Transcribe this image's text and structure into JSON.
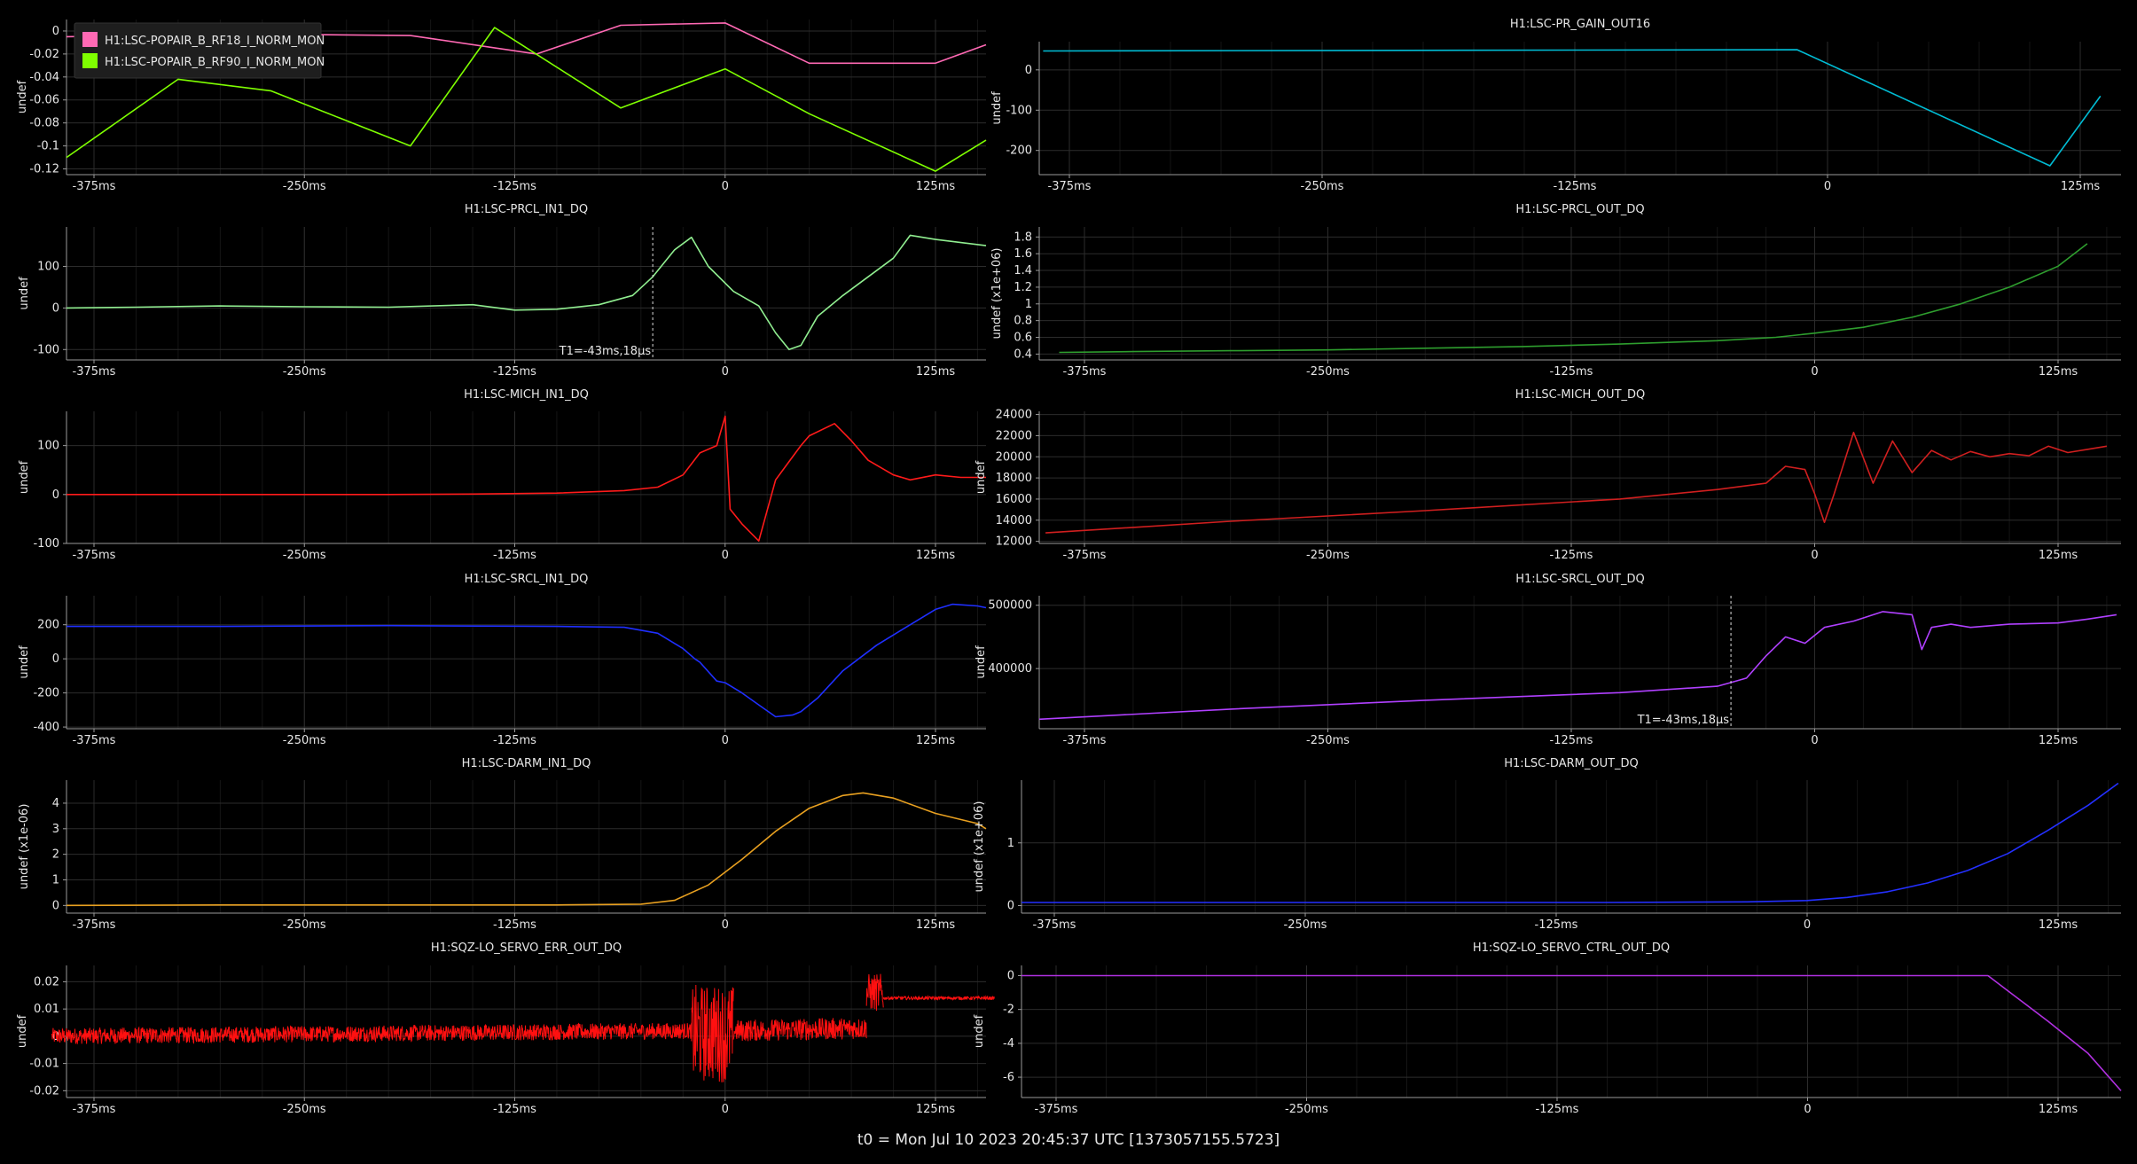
{
  "footer": {
    "t0_label": "t0 = Mon Jul 10 2023 20:45:37 UTC [1373057155.5723]"
  },
  "chart_data": [
    {
      "type": "line",
      "title": "",
      "ylabel": "undef",
      "x_ticks": [
        "-375ms",
        "-250ms",
        "-125ms",
        "0",
        "125ms"
      ],
      "ylim": [
        -0.125,
        0.01
      ],
      "y_ticks": [
        0,
        -0.02,
        -0.04,
        -0.06,
        -0.08,
        -0.1,
        -0.12
      ],
      "y_tick_labels": [
        "0",
        "-0.02",
        "-0.04",
        "-0.06",
        "-0.08",
        "-0.1",
        "-0.12"
      ],
      "legend": "top-left",
      "series": [
        {
          "name": "H1:LSC-POPAIR_B_RF18_I_NORM_MON",
          "color": "#ff69b4",
          "x": [
            -400,
            -325,
            -250,
            -187,
            -112,
            -62,
            0,
            50,
            125,
            165
          ],
          "y": [
            -0.005,
            -0.003,
            -0.003,
            -0.004,
            -0.02,
            0.005,
            0.007,
            -0.028,
            -0.028,
            -0.012
          ]
        },
        {
          "name": "H1:LSC-POPAIR_B_RF90_I_NORM_MON",
          "color": "#7fff00",
          "x": [
            -400,
            -325,
            -270,
            -187,
            -137,
            -62,
            0,
            50,
            125,
            165
          ],
          "y": [
            -0.11,
            -0.042,
            -0.052,
            -0.1,
            0.003,
            -0.067,
            -0.033,
            -0.072,
            -0.122,
            -0.095
          ]
        }
      ]
    },
    {
      "type": "line",
      "title": "H1:LSC-PR_GAIN_OUT16",
      "ylabel": "undef",
      "x_ticks": [
        "-375ms",
        "-250ms",
        "-125ms",
        "0",
        "125ms"
      ],
      "ylim": [
        -260,
        70
      ],
      "y_ticks": [
        0,
        -100,
        -200
      ],
      "y_tick_labels": [
        "0",
        "-100",
        "-200"
      ],
      "series": [
        {
          "color": "#00bcd4",
          "x": [
            -388,
            -15,
            110,
            135
          ],
          "y": [
            47,
            50,
            -238,
            -65
          ]
        }
      ]
    },
    {
      "type": "line",
      "title": "H1:LSC-PRCL_IN1_DQ",
      "ylabel": "undef",
      "x_ticks": [
        "-375ms",
        "-250ms",
        "-125ms",
        "0",
        "125ms"
      ],
      "ylim": [
        -125,
        195
      ],
      "y_ticks": [
        100,
        0,
        -100
      ],
      "y_tick_labels": [
        "100",
        "0",
        "-100"
      ],
      "annotation": "T1=-43ms,18µs",
      "series": [
        {
          "color": "#90ee90",
          "x": [
            -400,
            -350,
            -300,
            -250,
            -200,
            -150,
            -125,
            -100,
            -75,
            -55,
            -43,
            -30,
            -20,
            -10,
            5,
            20,
            30,
            38,
            45,
            55,
            70,
            100,
            110,
            125,
            165
          ],
          "y": [
            0,
            2,
            5,
            3,
            2,
            8,
            -5,
            -3,
            8,
            30,
            75,
            140,
            170,
            100,
            40,
            5,
            -60,
            -100,
            -90,
            -20,
            30,
            120,
            175,
            165,
            150
          ]
        }
      ]
    },
    {
      "type": "line",
      "title": "H1:LSC-PRCL_OUT_DQ",
      "ylabel": "undef (x1e+06)",
      "x_ticks": [
        "-375ms",
        "-250ms",
        "-125ms",
        "0",
        "125ms"
      ],
      "ylim": [
        0.33,
        1.92
      ],
      "y_ticks": [
        0.4,
        0.6,
        0.8,
        1,
        1.2,
        1.4,
        1.6,
        1.8
      ],
      "y_tick_labels": [
        "0.4",
        "0.6",
        "0.8",
        "1",
        "1.2",
        "1.4",
        "1.6",
        "1.8"
      ],
      "series": [
        {
          "color": "#2e9e2e",
          "x": [
            -388,
            -350,
            -300,
            -250,
            -200,
            -150,
            -100,
            -50,
            -20,
            0,
            25,
            50,
            75,
            100,
            125,
            140
          ],
          "y": [
            0.42,
            0.43,
            0.44,
            0.45,
            0.47,
            0.49,
            0.52,
            0.56,
            0.6,
            0.65,
            0.72,
            0.84,
            1.0,
            1.2,
            1.45,
            1.72
          ]
        }
      ]
    },
    {
      "type": "line",
      "title": "H1:LSC-MICH_IN1_DQ",
      "ylabel": "undef",
      "x_ticks": [
        "-375ms",
        "-250ms",
        "-125ms",
        "0",
        "125ms"
      ],
      "ylim": [
        -100,
        170
      ],
      "y_ticks": [
        100,
        0,
        -100
      ],
      "y_tick_labels": [
        "100",
        "0",
        "-100"
      ],
      "series": [
        {
          "color": "#ff1a1a",
          "x": [
            -400,
            -300,
            -200,
            -150,
            -100,
            -60,
            -40,
            -25,
            -15,
            -5,
            0,
            3,
            10,
            20,
            30,
            45,
            50,
            65,
            75,
            85,
            100,
            110,
            125,
            140,
            165
          ],
          "y": [
            0,
            0,
            0,
            1,
            3,
            8,
            15,
            40,
            85,
            100,
            160,
            -30,
            -60,
            -95,
            30,
            100,
            120,
            145,
            110,
            70,
            40,
            30,
            40,
            35,
            35
          ]
        }
      ]
    },
    {
      "type": "line",
      "title": "H1:LSC-MICH_OUT_DQ",
      "ylabel": "undef",
      "x_ticks": [
        "-375ms",
        "-250ms",
        "-125ms",
        "0",
        "125ms"
      ],
      "ylim": [
        11800,
        24300
      ],
      "y_ticks": [
        12000,
        14000,
        16000,
        18000,
        20000,
        22000,
        24000
      ],
      "y_tick_labels": [
        "12000",
        "14000",
        "16000",
        "18000",
        "20000",
        "22000",
        "24000"
      ],
      "series": [
        {
          "color": "#d01f1f",
          "x": [
            -395,
            -300,
            -200,
            -100,
            -50,
            -25,
            -15,
            -5,
            0,
            5,
            10,
            20,
            30,
            40,
            50,
            60,
            70,
            80,
            90,
            100,
            110,
            120,
            130,
            140,
            150
          ],
          "y": [
            12800,
            13900,
            14900,
            16000,
            16900,
            17500,
            19100,
            18800,
            16500,
            13800,
            16500,
            22300,
            17500,
            21500,
            18500,
            20600,
            19700,
            20500,
            20000,
            20300,
            20100,
            21000,
            20400,
            20700,
            21000
          ]
        }
      ]
    },
    {
      "type": "line",
      "title": "H1:LSC-SRCL_IN1_DQ",
      "ylabel": "undef",
      "x_ticks": [
        "-375ms",
        "-250ms",
        "-125ms",
        "0",
        "125ms"
      ],
      "ylim": [
        -410,
        370
      ],
      "y_ticks": [
        200,
        0,
        -200,
        -400
      ],
      "y_tick_labels": [
        "200",
        "0",
        "-200",
        "-400"
      ],
      "series": [
        {
          "color": "#1f2fff",
          "x": [
            -400,
            -300,
            -200,
            -100,
            -60,
            -40,
            -25,
            -18,
            -15,
            -5,
            0,
            10,
            20,
            30,
            40,
            45,
            55,
            70,
            90,
            110,
            125,
            135,
            150,
            165
          ],
          "y": [
            190,
            190,
            195,
            190,
            185,
            150,
            60,
            0,
            -20,
            -130,
            -140,
            -200,
            -270,
            -340,
            -330,
            -310,
            -230,
            -70,
            80,
            200,
            290,
            320,
            310,
            300
          ]
        }
      ]
    },
    {
      "type": "line",
      "title": "H1:LSC-SRCL_OUT_DQ",
      "ylabel": "undef",
      "x_ticks": [
        "-375ms",
        "-250ms",
        "-125ms",
        "0",
        "125ms"
      ],
      "ylim": [
        305000,
        515000
      ],
      "y_ticks": [
        400000,
        500000
      ],
      "y_tick_labels": [
        "400000",
        "500000"
      ],
      "annotation": "T1=-43ms,18µs",
      "series": [
        {
          "color": "#b040ff",
          "x": [
            -405,
            -300,
            -200,
            -100,
            -50,
            -43,
            -35,
            -25,
            -15,
            -5,
            5,
            20,
            35,
            50,
            55,
            60,
            70,
            80,
            100,
            125,
            140,
            155
          ],
          "y": [
            320000,
            336000,
            350000,
            362000,
            372000,
            378000,
            385000,
            420000,
            450000,
            440000,
            465000,
            475000,
            490000,
            485000,
            430000,
            465000,
            470000,
            465000,
            470000,
            472000,
            478000,
            485000
          ]
        }
      ]
    },
    {
      "type": "line",
      "title": "H1:LSC-DARM_IN1_DQ",
      "ylabel": "undef (x1e-06)",
      "x_ticks": [
        "-375ms",
        "-250ms",
        "-125ms",
        "0",
        "125ms"
      ],
      "ylim": [
        -0.3,
        4.9
      ],
      "y_ticks": [
        0,
        1,
        2,
        3,
        4
      ],
      "y_tick_labels": [
        "0",
        "1",
        "2",
        "3",
        "4"
      ],
      "series": [
        {
          "color": "#e8a020",
          "x": [
            -400,
            -300,
            -200,
            -100,
            -50,
            -30,
            -10,
            10,
            30,
            50,
            70,
            82,
            100,
            125,
            150,
            165
          ],
          "y": [
            0,
            0.02,
            0.02,
            0.02,
            0.05,
            0.2,
            0.8,
            1.8,
            2.9,
            3.8,
            4.3,
            4.4,
            4.2,
            3.6,
            3.2,
            3.0
          ]
        }
      ]
    },
    {
      "type": "line",
      "title": "H1:LSC-DARM_OUT_DQ",
      "ylabel": "undef (x1e+06)",
      "x_ticks": [
        "-375ms",
        "-250ms",
        "-125ms",
        "0",
        "125ms"
      ],
      "ylim": [
        -0.12,
        2.0
      ],
      "y_ticks": [
        0,
        1
      ],
      "y_tick_labels": [
        "0",
        "1"
      ],
      "series": [
        {
          "color": "#2430ff",
          "x": [
            -400,
            -300,
            -200,
            -100,
            -30,
            0,
            20,
            40,
            60,
            80,
            100,
            120,
            140,
            155
          ],
          "y": [
            0.05,
            0.05,
            0.05,
            0.05,
            0.06,
            0.08,
            0.13,
            0.22,
            0.36,
            0.56,
            0.83,
            1.2,
            1.6,
            1.95
          ]
        }
      ]
    },
    {
      "type": "line",
      "title": "H1:SQZ-LO_SERVO_ERR_OUT_DQ",
      "ylabel": "undef",
      "x_ticks": [
        "-375ms",
        "-250ms",
        "-125ms",
        "0",
        "125ms"
      ],
      "ylim": [
        -0.0225,
        0.026
      ],
      "y_ticks": [
        0.02,
        0.01,
        0,
        -0.01,
        -0.02
      ],
      "y_tick_labels": [
        "0.02",
        "0.01",
        "0",
        "-0.01",
        "-0.02"
      ],
      "noise": [
        {
          "x_start": -400,
          "x_end": -20,
          "y_start": 0,
          "y_end": 0.002,
          "amplitude": 0.003
        },
        {
          "x_start": -20,
          "x_end": 5,
          "y_start": 0.001,
          "y_end": 0.001,
          "amplitude": 0.018
        },
        {
          "x_start": 5,
          "x_end": 84,
          "y_start": 0.002,
          "y_end": 0.003,
          "amplitude": 0.004
        },
        {
          "x_start": 84,
          "x_end": 94,
          "y_start": 0.016,
          "y_end": 0.016,
          "amplitude": 0.007
        },
        {
          "x_start": 94,
          "x_end": 160,
          "y_start": 0.014,
          "y_end": 0.014,
          "amplitude": 0.0006
        }
      ],
      "series": [
        {
          "color": "#ff1010",
          "x": [],
          "y": []
        }
      ]
    },
    {
      "type": "line",
      "title": "H1:SQZ-LO_SERVO_CTRL_OUT_DQ",
      "ylabel": "undef",
      "x_ticks": [
        "-375ms",
        "-250ms",
        "-125ms",
        "0",
        "125ms"
      ],
      "ylim": [
        -7.2,
        0.6
      ],
      "y_ticks": [
        0,
        -2,
        -4,
        -6
      ],
      "y_tick_labels": [
        "0",
        "-2",
        "-4",
        "-6"
      ],
      "series": [
        {
          "color": "#b030e0",
          "x": [
            -395,
            -200,
            -50,
            0,
            50,
            90,
            100,
            120,
            140,
            160
          ],
          "y": [
            0,
            0,
            0,
            0,
            0,
            0,
            -0.9,
            -2.7,
            -4.6,
            -6.8
          ]
        }
      ]
    }
  ]
}
